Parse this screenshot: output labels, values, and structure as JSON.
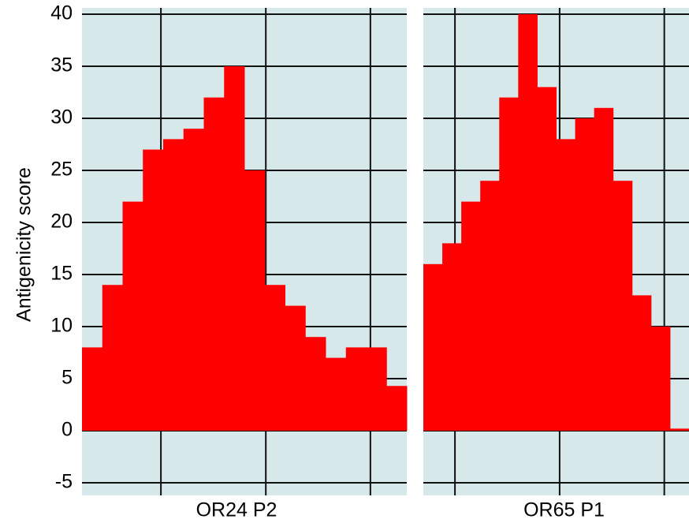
{
  "chart_data": [
    {
      "type": "bar",
      "ylabel": "Antigenicity score",
      "xlabel": "OR24 P2",
      "values": [
        8,
        14,
        22,
        27,
        28,
        29,
        32,
        35,
        25,
        14,
        12,
        9,
        7,
        8,
        8,
        4.3
      ],
      "color": "#ff0000",
      "ylim": [
        -5,
        40
      ],
      "yticks": [
        -5,
        0,
        5,
        10,
        15,
        20,
        25,
        30,
        35,
        40
      ],
      "grid": true
    },
    {
      "type": "bar",
      "xlabel": "OR65 P1",
      "values": [
        16,
        18,
        22,
        24,
        32,
        40,
        33,
        28,
        30,
        31,
        24,
        13,
        10,
        0.2
      ],
      "color": "#ff0000",
      "ylim": [
        -5,
        40
      ],
      "yticks": [
        -5,
        0,
        5,
        10,
        15,
        20,
        25,
        30,
        35,
        40
      ],
      "grid": true
    }
  ]
}
